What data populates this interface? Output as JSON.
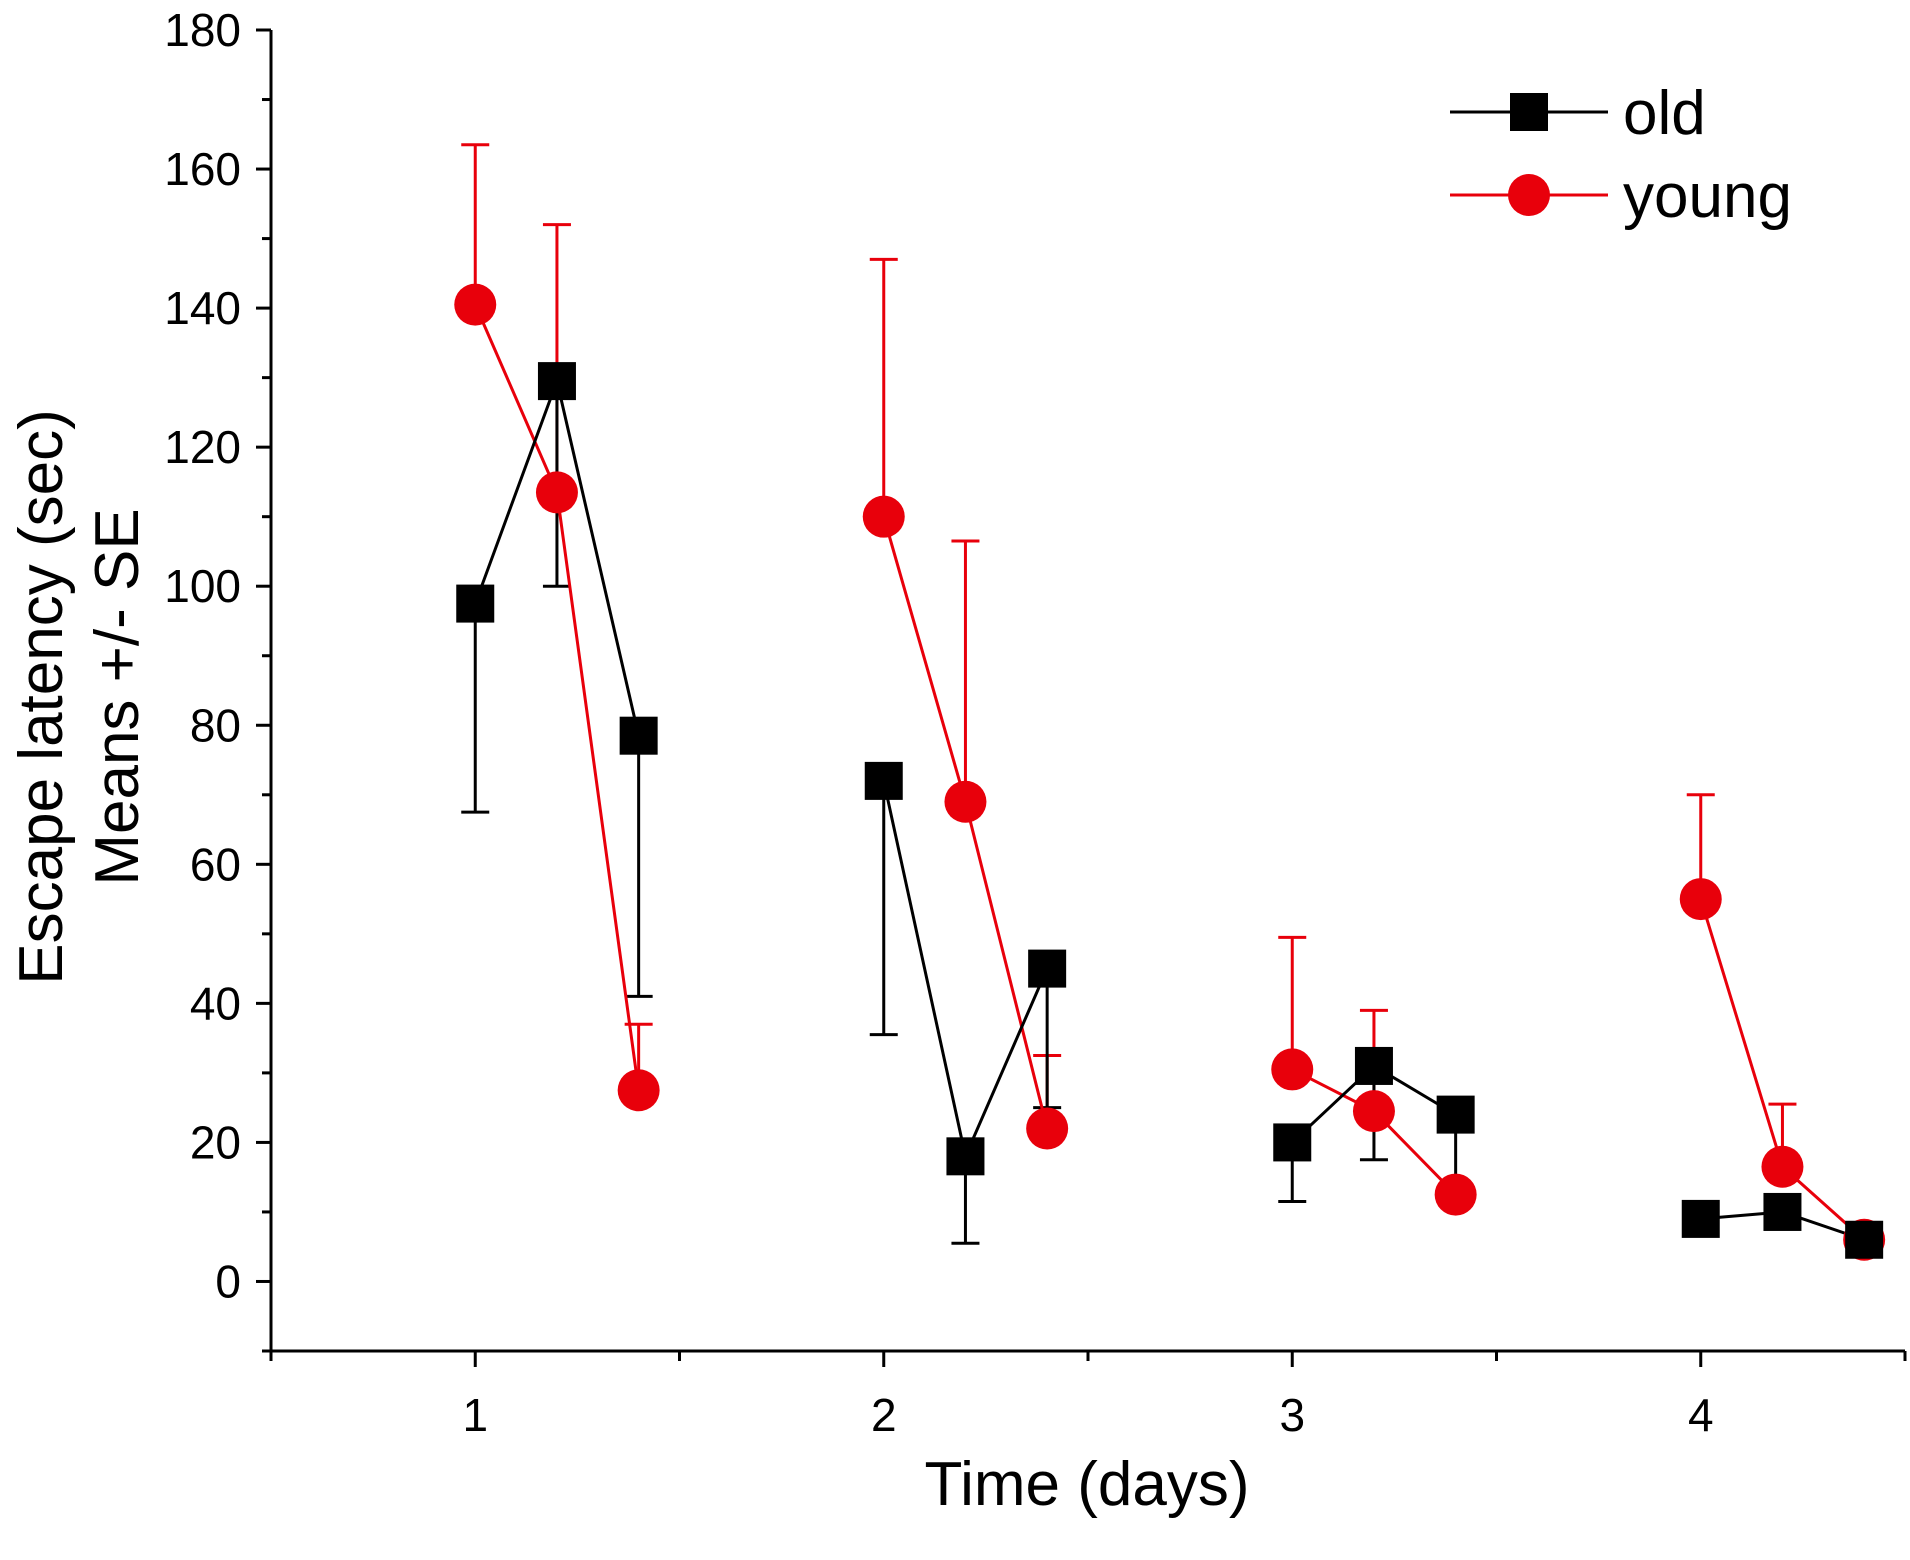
{
  "chart_data": {
    "type": "line",
    "title": "",
    "xlabel": "Time (days)",
    "ylabel_lines": [
      "Escape latency (sec)",
      "Means +/- SE"
    ],
    "xlim": [
      0.5,
      4.5
    ],
    "ylim": [
      -10,
      180
    ],
    "yticks": [
      0,
      20,
      40,
      60,
      80,
      100,
      120,
      140,
      160,
      180
    ],
    "ytick_labels": [
      "0",
      "20",
      "40",
      "60",
      "80",
      "100",
      "120",
      "140",
      "160",
      "180"
    ],
    "xticks": [
      1,
      2,
      3,
      4
    ],
    "xtick_labels": [
      "1",
      "2",
      "3",
      "4"
    ],
    "x_minor_ticks": [
      0.5,
      1.5,
      2.5,
      3.5,
      4.5
    ],
    "y_minor_ticks": [
      -10,
      10,
      30,
      50,
      70,
      90,
      110,
      130,
      150,
      170
    ],
    "legend_position": "top-right",
    "series": [
      {
        "name": "old",
        "color": "#000000",
        "marker": "square",
        "error_direction": "down",
        "groups": [
          {
            "x": [
              1.0,
              1.2,
              1.4
            ],
            "y": [
              97.5,
              129.5,
              78.5
            ],
            "err": [
              30,
              29.5,
              37.5
            ]
          },
          {
            "x": [
              2.0,
              2.2,
              2.4
            ],
            "y": [
              72,
              18,
              45
            ],
            "err": [
              36.5,
              12.5,
              20
            ]
          },
          {
            "x": [
              3.0,
              3.2,
              3.4
            ],
            "y": [
              20,
              31,
              24
            ],
            "err": [
              8.5,
              13.5,
              13
            ]
          },
          {
            "x": [
              4.0,
              4.2,
              4.4
            ],
            "y": [
              9,
              10,
              6
            ],
            "err": [
              0,
              0,
              0
            ]
          }
        ]
      },
      {
        "name": "young",
        "color": "#e8000b",
        "marker": "circle",
        "error_direction": "up",
        "groups": [
          {
            "x": [
              1.0,
              1.2,
              1.4
            ],
            "y": [
              140.5,
              113.5,
              27.5
            ],
            "err": [
              23,
              38.5,
              9.5
            ]
          },
          {
            "x": [
              2.0,
              2.2,
              2.4
            ],
            "y": [
              110,
              69,
              22
            ],
            "err": [
              37,
              37.5,
              10.5
            ]
          },
          {
            "x": [
              3.0,
              3.2,
              3.4
            ],
            "y": [
              30.5,
              24.5,
              12.5
            ],
            "err": [
              19,
              14.5,
              0
            ]
          },
          {
            "x": [
              4.0,
              4.2,
              4.4
            ],
            "y": [
              55,
              16.5,
              6
            ],
            "err": [
              15,
              9,
              0
            ]
          }
        ]
      }
    ]
  }
}
